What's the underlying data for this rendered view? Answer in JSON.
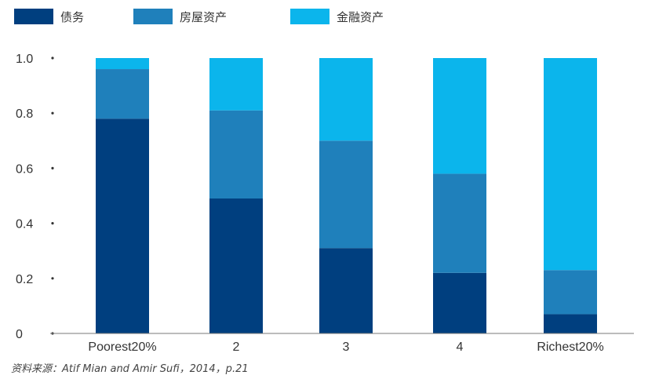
{
  "chart_data": {
    "type": "bar",
    "stacked": true,
    "categories": [
      "Poorest20%",
      "2",
      "3",
      "4",
      "Richest20%"
    ],
    "series": [
      {
        "name": "债务",
        "color": "#003f7f",
        "values": [
          0.78,
          0.49,
          0.31,
          0.22,
          0.07
        ]
      },
      {
        "name": "房屋资产",
        "color": "#1f80bb",
        "values": [
          0.18,
          0.32,
          0.39,
          0.36,
          0.16
        ]
      },
      {
        "name": "金融资产",
        "color": "#0bb5ec",
        "values": [
          0.05,
          0.2,
          0.31,
          0.43,
          0.78
        ]
      }
    ],
    "y_ticks": [
      "0",
      "0.2",
      "0.4",
      "0.6",
      "0.8",
      "1.0"
    ],
    "ylim": [
      0,
      1.0
    ],
    "legend_position": "top-left",
    "grid": false,
    "title": "",
    "xlabel": "",
    "ylabel": ""
  },
  "source_note": "资料来源：Atif Mian and Amir Sufi，2014，p.21"
}
